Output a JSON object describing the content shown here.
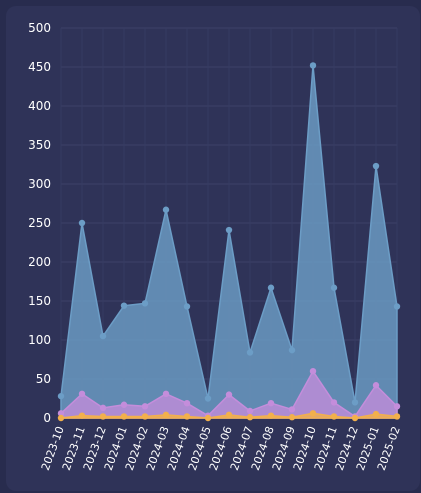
{
  "chart_data": {
    "type": "area",
    "x": [
      "2023-10",
      "2023-11",
      "2023-12",
      "2024-01",
      "2024-02",
      "2024-03",
      "2024-04",
      "2024-05",
      "2024-06",
      "2024-07",
      "2024-08",
      "2024-09",
      "2024-10",
      "2024-11",
      "2024-12",
      "2025-01",
      "2025-02"
    ],
    "x_labels": [
      "2023-10",
      "2023-11",
      "2023-12",
      "2024-01",
      "2024-02",
      "2024-03",
      "2024-04",
      "2024-05",
      "2024-06",
      "2024-07",
      "2024-08",
      "2024-09",
      "2024-10",
      "2024-11",
      "2024-12",
      "2025-01",
      "2025-02"
    ],
    "series": [
      {
        "color": "#6c9dc6",
        "values": [
          28,
          250,
          105,
          144,
          147,
          267,
          143,
          25,
          241,
          84,
          167,
          87,
          452,
          167,
          20,
          323,
          143
        ]
      },
      {
        "color": "#c48ddb",
        "values": [
          6,
          31,
          13,
          17,
          15,
          31,
          19,
          3,
          30,
          9,
          19,
          11,
          60,
          20,
          2,
          42,
          15
        ]
      },
      {
        "color": "#f2b04b",
        "values": [
          0,
          3,
          2,
          2,
          2,
          4,
          2,
          0,
          4,
          1,
          3,
          1,
          6,
          2,
          0,
          5,
          2
        ]
      }
    ],
    "y_ticks": [
      0,
      50,
      100,
      150,
      200,
      250,
      300,
      350,
      400,
      450,
      500
    ],
    "ylim": [
      0,
      500
    ],
    "grid": true,
    "title": "",
    "xlabel": "",
    "ylabel": ""
  }
}
